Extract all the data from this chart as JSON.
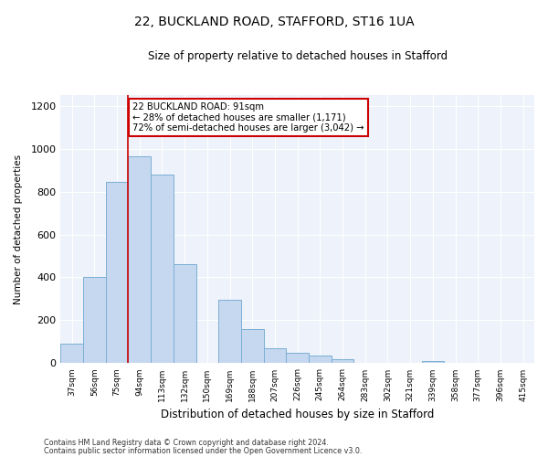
{
  "title_line1": "22, BUCKLAND ROAD, STAFFORD, ST16 1UA",
  "title_line2": "Size of property relative to detached houses in Stafford",
  "xlabel": "Distribution of detached houses by size in Stafford",
  "ylabel": "Number of detached properties",
  "categories": [
    "37sqm",
    "56sqm",
    "75sqm",
    "94sqm",
    "113sqm",
    "132sqm",
    "150sqm",
    "169sqm",
    "188sqm",
    "207sqm",
    "226sqm",
    "245sqm",
    "264sqm",
    "283sqm",
    "302sqm",
    "321sqm",
    "339sqm",
    "358sqm",
    "377sqm",
    "396sqm",
    "415sqm"
  ],
  "values": [
    90,
    400,
    845,
    965,
    880,
    460,
    0,
    295,
    160,
    70,
    50,
    35,
    20,
    0,
    0,
    0,
    10,
    0,
    0,
    0,
    0
  ],
  "bar_color": "#c5d8f0",
  "bar_edge_color": "#7bafd4",
  "vline_color": "#cc0000",
  "vline_bar_index": 3,
  "annotation_text": "22 BUCKLAND ROAD: 91sqm\n← 28% of detached houses are smaller (1,171)\n72% of semi-detached houses are larger (3,042) →",
  "annotation_box_color": "#ffffff",
  "annotation_box_edge_color": "#cc0000",
  "ylim": [
    0,
    1250
  ],
  "yticks": [
    0,
    200,
    400,
    600,
    800,
    1000,
    1200
  ],
  "background_color": "#eef2fa",
  "footer_line1": "Contains HM Land Registry data © Crown copyright and database right 2024.",
  "footer_line2": "Contains public sector information licensed under the Open Government Licence v3.0."
}
